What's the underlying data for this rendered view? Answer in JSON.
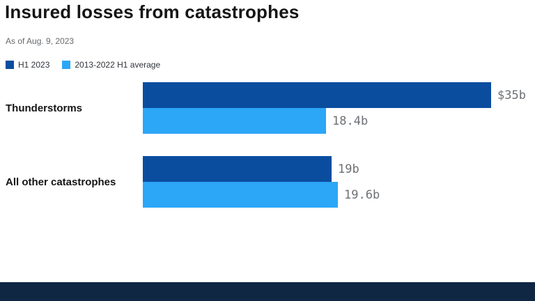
{
  "header": {
    "title": "Insured losses from catastrophes",
    "subtitle": "As of Aug. 9, 2023"
  },
  "colors": {
    "series_dark": "#0a4d9f",
    "series_light": "#2ca6f7",
    "footer": "#0f2743",
    "value_label": "#6d7074"
  },
  "chart_data": {
    "type": "bar",
    "orientation": "horizontal",
    "title": "Insured losses from catastrophes",
    "subtitle": "As of Aug. 9, 2023",
    "categories": [
      "Thunderstorms",
      "All other catastrophes"
    ],
    "series": [
      {
        "name": "H1 2023",
        "color": "#0a4d9f",
        "values": [
          35,
          19
        ],
        "value_labels": [
          "$35b",
          "19b"
        ]
      },
      {
        "name": "2013-2022 H1 average",
        "color": "#2ca6f7",
        "values": [
          18.4,
          19.6
        ],
        "value_labels": [
          "18.4b",
          "19.6b"
        ]
      }
    ],
    "xlim": [
      0,
      35
    ],
    "unit": "billions USD",
    "grid": false,
    "legend_position": "top-left"
  }
}
